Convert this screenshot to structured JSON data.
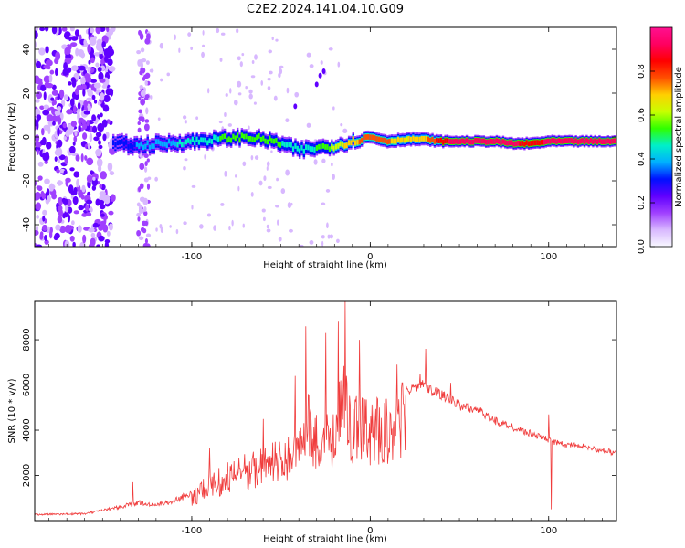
{
  "title": "C2E2.2024.141.04.10.G09",
  "colorbar": {
    "label": "Normalized spectral amplitude",
    "ticks": [
      0.0,
      0.2,
      0.4,
      0.6,
      0.8
    ],
    "tick_labels": [
      "0.0",
      "0.2",
      "0.4",
      "0.6",
      "0.8"
    ],
    "range": [
      0,
      1
    ],
    "colors": [
      "#f8f8ff",
      "#d8b8ff",
      "#a040ff",
      "#6000ff",
      "#0010ff",
      "#00b0ff",
      "#00f0c8",
      "#30ff00",
      "#c8ff00",
      "#ffd000",
      "#ff5000",
      "#ff0000",
      "#ff0060",
      "#ff1090"
    ]
  },
  "chart_data": [
    {
      "type": "heatmap",
      "title": "C2E2.2024.141.04.10.G09",
      "xlabel": "Height of straight line (km)",
      "ylabel": "Frequency (Hz)",
      "xlim": [
        -188,
        138
      ],
      "ylim": [
        -50,
        50
      ],
      "xticks": [
        -100,
        0,
        100
      ],
      "xtick_labels": [
        "-100",
        "0",
        "100"
      ],
      "yticks": [
        -40,
        -20,
        0,
        20,
        40
      ],
      "ytick_labels": [
        "-40",
        "-20",
        "0",
        "20",
        "40"
      ],
      "ridge": {
        "x": [
          -144,
          -130,
          -115,
          -100,
          -85,
          -70,
          -60,
          -50,
          -40,
          -30,
          -20,
          -10,
          0,
          10,
          20,
          30,
          40,
          50,
          60,
          70,
          80,
          90,
          100,
          110,
          120,
          138
        ],
        "y": [
          -3,
          -4,
          -3,
          -2,
          -1,
          0,
          -1,
          -3,
          -6,
          -5,
          -4,
          -2,
          0,
          -2,
          -1,
          -1,
          -2,
          -2,
          -2,
          -2,
          -3,
          -3,
          -2,
          -2,
          -2,
          -2
        ],
        "amplitude": [
          0.3,
          0.35,
          0.4,
          0.45,
          0.5,
          0.55,
          0.55,
          0.5,
          0.45,
          0.5,
          0.6,
          0.7,
          0.8,
          0.75,
          0.65,
          0.7,
          0.85,
          0.95,
          0.95,
          0.95,
          0.9,
          0.85,
          0.9,
          0.95,
          0.95,
          0.95
        ]
      },
      "noise_region_x": [
        -188,
        -144
      ],
      "noise_band_x": [
        -130,
        -124
      ],
      "harmonic_points": {
        "x": [
          -42,
          -30,
          -28,
          -26
        ],
        "y": [
          14,
          24,
          28,
          30
        ]
      }
    },
    {
      "type": "line",
      "xlabel": "Height of straight line (km)",
      "ylabel": "SNR (10 * v/v)",
      "xlim": [
        -188,
        138
      ],
      "ylim": [
        0,
        9700
      ],
      "xticks": [
        -100,
        0,
        100
      ],
      "xtick_labels": [
        "-100",
        "0",
        "100"
      ],
      "yticks": [
        2000,
        4000,
        6000,
        8000
      ],
      "ytick_labels": [
        "2000",
        "4000",
        "6000",
        "8000"
      ],
      "color": "#f03c3c",
      "envelope": {
        "x": [
          -188,
          -160,
          -150,
          -140,
          -130,
          -120,
          -110,
          -100,
          -90,
          -80,
          -70,
          -60,
          -50,
          -40,
          -36,
          -30,
          -20,
          -16,
          -10,
          0,
          10,
          20,
          30,
          34,
          40,
          50,
          60,
          70,
          80,
          90,
          100,
          104,
          110,
          120,
          130,
          138
        ],
        "y": [
          300,
          350,
          500,
          700,
          900,
          800,
          1000,
          1400,
          2100,
          2600,
          3000,
          3300,
          3700,
          4000,
          6000,
          5000,
          4700,
          7500,
          5600,
          5400,
          5500,
          6000,
          6300,
          6000,
          5800,
          5300,
          5100,
          4600,
          4300,
          4000,
          3700,
          3600,
          3500,
          3400,
          3250,
          3100
        ]
      },
      "spikes": {
        "x": [
          -133,
          -90,
          -60,
          -42,
          -36,
          -25,
          -18,
          -14,
          -6,
          15,
          18,
          28,
          31,
          45,
          100,
          101.5
        ],
        "y": [
          1700,
          3200,
          4500,
          6400,
          8600,
          8300,
          8800,
          9700,
          8000,
          6900,
          6100,
          6500,
          7600,
          6100,
          4700,
          500
        ]
      }
    }
  ]
}
